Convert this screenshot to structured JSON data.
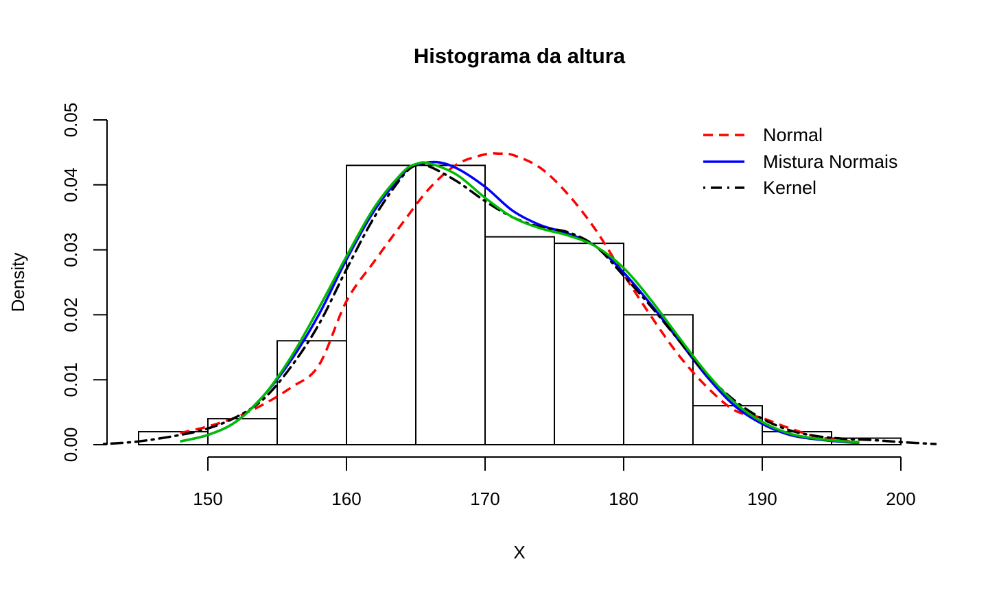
{
  "chart_data": {
    "type": "histogram",
    "title": "Histograma da altura",
    "xlabel": "X",
    "ylabel": "Density",
    "xlim": [
      142.5,
      202.5
    ],
    "ylim": [
      0,
      0.05
    ],
    "x_ticks": [
      150,
      160,
      170,
      180,
      190,
      200
    ],
    "x_tick_labels": [
      "150",
      "160",
      "170",
      "180",
      "190",
      "200"
    ],
    "y_ticks": [
      0,
      0.01,
      0.02,
      0.03,
      0.04,
      0.05
    ],
    "y_tick_labels": [
      "0.00",
      "0.01",
      "0.02",
      "0.03",
      "0.04",
      "0.05"
    ],
    "bins": [
      {
        "start": 145,
        "end": 150,
        "density": 0.002
      },
      {
        "start": 150,
        "end": 155,
        "density": 0.004
      },
      {
        "start": 155,
        "end": 160,
        "density": 0.016
      },
      {
        "start": 160,
        "end": 165,
        "density": 0.043
      },
      {
        "start": 165,
        "end": 170,
        "density": 0.043
      },
      {
        "start": 170,
        "end": 175,
        "density": 0.032
      },
      {
        "start": 175,
        "end": 180,
        "density": 0.031
      },
      {
        "start": 180,
        "end": 185,
        "density": 0.02
      },
      {
        "start": 185,
        "end": 190,
        "density": 0.006
      },
      {
        "start": 190,
        "end": 195,
        "density": 0.002
      },
      {
        "start": 195,
        "end": 200,
        "density": 0.001
      }
    ],
    "series": [
      {
        "name": "Normal",
        "color": "#ff0000",
        "dash": "dashed",
        "x": [
          148,
          150,
          152,
          154,
          156,
          158,
          160,
          162,
          164,
          166,
          168,
          170,
          171,
          172,
          174,
          176,
          178,
          180,
          182,
          184,
          186,
          188,
          190,
          192,
          194,
          196,
          197
        ],
        "y": [
          0.0018,
          0.0028,
          0.0042,
          0.0062,
          0.0088,
          0.0122,
          0.0221,
          0.0282,
          0.034,
          0.0395,
          0.0432,
          0.0447,
          0.0448,
          0.0446,
          0.0426,
          0.0385,
          0.033,
          0.0262,
          0.0197,
          0.0137,
          0.0089,
          0.0053,
          0.0041,
          0.0025,
          0.0012,
          0.0006,
          0.0004
        ]
      },
      {
        "name": "Mistura Normais",
        "color": "#0000ff",
        "dash": "solid",
        "x": [
          148,
          150,
          152,
          154,
          156,
          158,
          160,
          162,
          164,
          165,
          166.5,
          168,
          170,
          172,
          174,
          176,
          178,
          180,
          182,
          184,
          186,
          188,
          190,
          192,
          194,
          196,
          197
        ],
        "y": [
          0.0005,
          0.0015,
          0.0035,
          0.0075,
          0.013,
          0.02,
          0.0285,
          0.036,
          0.0415,
          0.043,
          0.0435,
          0.0425,
          0.0397,
          0.036,
          0.0338,
          0.0325,
          0.0305,
          0.0265,
          0.0215,
          0.016,
          0.0105,
          0.006,
          0.0032,
          0.0015,
          0.0008,
          0.0004,
          0.0003
        ]
      },
      {
        "name": "Kernel",
        "color": "#000000",
        "dash": "dotdash",
        "x": [
          142.5,
          145,
          148,
          150,
          152,
          154,
          156,
          158,
          160,
          162,
          164,
          165,
          166,
          168,
          170,
          172,
          174,
          176,
          178,
          180,
          182,
          184,
          186,
          188,
          190,
          192,
          194,
          196,
          198,
          200,
          202.5
        ],
        "y": [
          0.0001,
          0.0005,
          0.0015,
          0.0025,
          0.0042,
          0.007,
          0.012,
          0.0185,
          0.027,
          0.035,
          0.0412,
          0.043,
          0.0428,
          0.0405,
          0.0375,
          0.035,
          0.0335,
          0.0327,
          0.0305,
          0.026,
          0.0212,
          0.016,
          0.0108,
          0.0068,
          0.004,
          0.0022,
          0.0013,
          0.0009,
          0.0007,
          0.0004,
          0.0001
        ]
      },
      {
        "name": "",
        "color": "#00bb00",
        "dash": "solid",
        "x": [
          148,
          150,
          152,
          154,
          156,
          158,
          160,
          162,
          164,
          165,
          166,
          168,
          170,
          172,
          174,
          176,
          178,
          180,
          182,
          184,
          186,
          188,
          190,
          192,
          194,
          196,
          197
        ],
        "y": [
          0.0005,
          0.0015,
          0.0035,
          0.0075,
          0.0135,
          0.021,
          0.029,
          0.0365,
          0.0418,
          0.0432,
          0.0433,
          0.0415,
          0.038,
          0.035,
          0.0333,
          0.0322,
          0.0305,
          0.0272,
          0.0222,
          0.0165,
          0.011,
          0.0065,
          0.0035,
          0.0017,
          0.0009,
          0.0005,
          0.0004
        ]
      }
    ],
    "legend": {
      "position": "top-right",
      "entries": [
        "Normal",
        "Mistura Normais",
        "Kernel"
      ]
    }
  }
}
